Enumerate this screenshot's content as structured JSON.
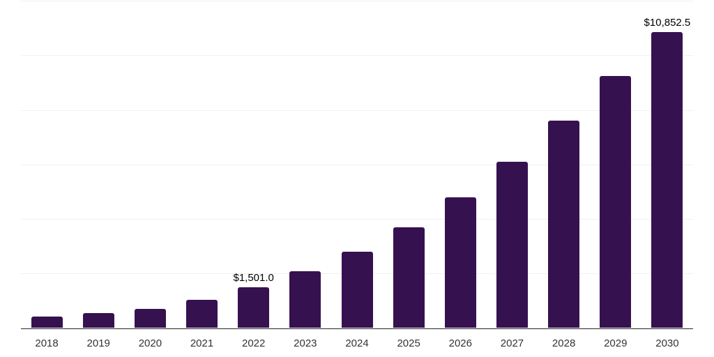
{
  "chart_data": {
    "type": "bar",
    "title": "",
    "xlabel": "",
    "ylabel": "",
    "categories": [
      "2018",
      "2019",
      "2020",
      "2021",
      "2022",
      "2023",
      "2024",
      "2025",
      "2026",
      "2027",
      "2028",
      "2029",
      "2030"
    ],
    "values": [
      410,
      550,
      700,
      1040,
      1501.0,
      2080,
      2800,
      3700,
      4780,
      6100,
      7600,
      9240,
      10852.5
    ],
    "data_labels": [
      {
        "category": "2022",
        "text": "$1,501.0"
      },
      {
        "category": "2030",
        "text": "$10,852.5"
      }
    ],
    "ylim": [
      0,
      12000
    ],
    "gridline_step": 2000,
    "grid": true,
    "legend": false,
    "y_axis_ticks_visible": false,
    "colors": {
      "bar": "#36114f",
      "gridline": "#f0f0f1",
      "axis": "#262626",
      "tick_label": "#333333",
      "data_label": "#000000",
      "background": "#ffffff"
    }
  }
}
